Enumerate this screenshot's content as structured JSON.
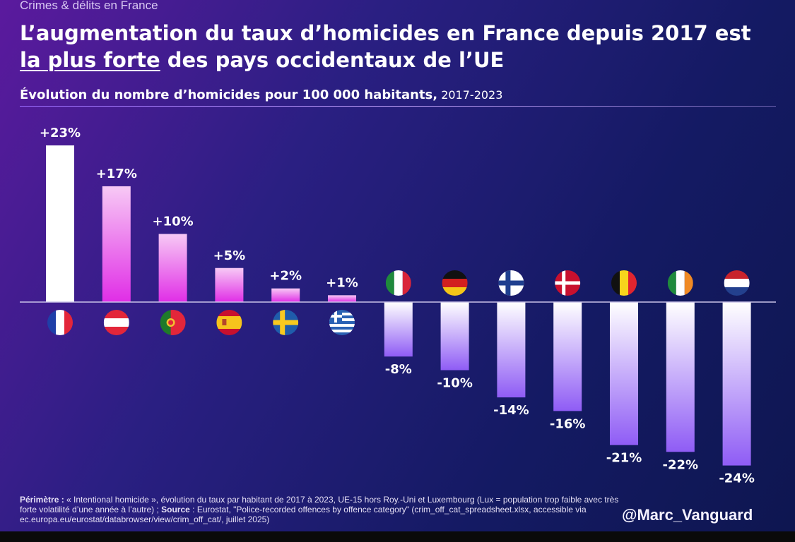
{
  "header": {
    "category": "Crimes & délits en France",
    "title_line1": "L’augmentation du taux d’homicides en France depuis 2017 est",
    "title_underlined": "la plus forte",
    "title_line2_rest": " des pays occidentaux de l’UE",
    "subtitle_bold": "Évolution du nombre d’homicides pour 100 000 habitants,",
    "subtitle_years": " 2017-2023"
  },
  "chart_data": {
    "type": "bar",
    "title": "Évolution du nombre d’homicides pour 100 000 habitants, 2017-2023",
    "categories": [
      "France",
      "Autriche",
      "Portugal",
      "Espagne",
      "Suède",
      "Grèce",
      "Italie",
      "Allemagne",
      "Finlande",
      "Danemark",
      "Belgique",
      "Irlande",
      "Pays-Bas"
    ],
    "values": [
      23,
      17,
      10,
      5,
      2,
      1,
      -8,
      -10,
      -14,
      -16,
      -21,
      -22,
      -24
    ],
    "labels": [
      "+23%",
      "+17%",
      "+10%",
      "+5%",
      "+2%",
      "+1%",
      "-8%",
      "-10%",
      "-14%",
      "-16%",
      "-21%",
      "-22%",
      "-24%"
    ],
    "flags": [
      "france-flag",
      "austria-flag",
      "portugal-flag",
      "spain-flag",
      "sweden-flag",
      "greece-flag",
      "italy-flag",
      "germany-flag",
      "finland-flag",
      "denmark-flag",
      "belgium-flag",
      "ireland-flag",
      "netherlands-flag"
    ],
    "unit": "%",
    "ylim": [
      -24,
      23
    ],
    "colors": {
      "highlight": "#ffffff",
      "positive_top": "#f7c9f5",
      "positive_bottom": "#e02ee6",
      "negative_top": "#ffffff",
      "negative_bottom": "#8f5cf5",
      "axis": "#c9c2e8"
    }
  },
  "footer": {
    "perimetre_label": "Périmètre :",
    "perimetre_text": " « Intentional homicide », évolution du taux par habitant de 2017 à 2023, UE-15 hors Roy.-Uni et Luxembourg (Lux = population trop faible avec très forte volatilité d’une année à l’autre) ; ",
    "source_label": "Source",
    "source_text": " : Eurostat, \"Police-recorded offences by offence category\" (crim_off_cat_spreadsheet.xlsx, accessible via ec.europa.eu/eurostat/databrowser/view/crim_off_cat/, juillet 2025)",
    "handle": "@Marc_Vanguard"
  }
}
